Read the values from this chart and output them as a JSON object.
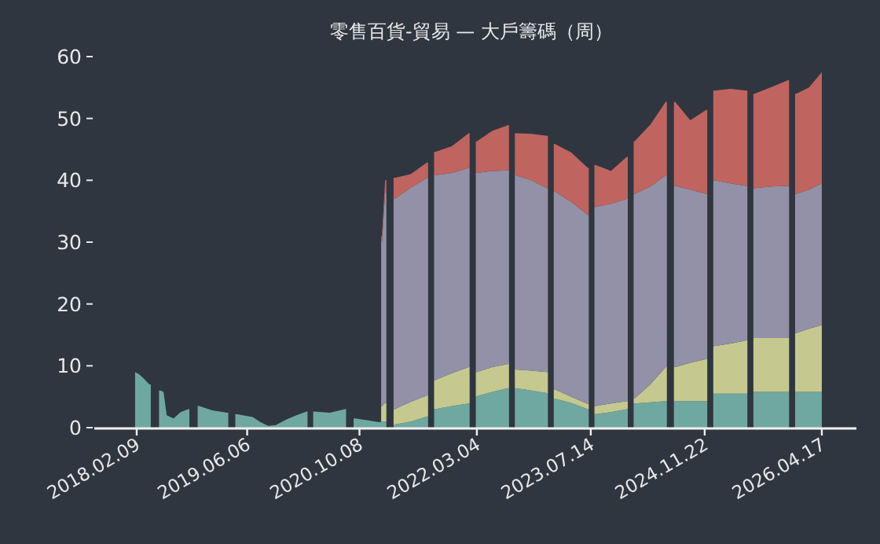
{
  "chart_data": {
    "type": "area",
    "title": "零售百貨-貿易 — 大戶籌碼（周）",
    "stacked": true,
    "x": [
      "2018-02-02",
      "2018-02-20",
      "2018-03-10",
      "2018-04-05",
      "2018-05-01",
      "2018-05-23",
      "2018-06-06",
      "2018-06-20",
      "2018-07-20",
      "2018-08-20",
      "2018-09-21",
      "2018-10-15",
      "2018-11-08",
      "2019-01-05",
      "2019-03-10",
      "2019-04-01",
      "2019-04-20",
      "2019-06-30",
      "2019-08-03",
      "2019-09-06",
      "2019-10-09",
      "2019-11-23",
      "2020-01-07",
      "2020-02-20",
      "2020-03-08",
      "2020-03-24",
      "2020-06-01",
      "2020-08-05",
      "2020-08-27",
      "2020-09-18",
      "2020-11-10",
      "2020-12-31",
      "2021-01-14",
      "2021-01-28",
      "2021-02-18",
      "2021-03-11",
      "2021-05-20",
      "2021-07-30",
      "2021-08-16",
      "2021-09-03",
      "2021-11-15",
      "2022-01-27",
      "2022-02-14",
      "2022-03-04",
      "2022-05-10",
      "2022-07-18",
      "2022-08-04",
      "2022-08-21",
      "2022-10-28",
      "2023-01-04",
      "2023-01-20",
      "2023-02-07",
      "2023-04-20",
      "2023-07-01",
      "2023-07-18",
      "2023-08-03",
      "2023-10-10",
      "2023-12-18",
      "2024-01-05",
      "2024-01-21",
      "2024-03-30",
      "2024-06-05",
      "2024-06-25",
      "2024-07-16",
      "2024-09-20",
      "2024-11-29",
      "2024-12-16",
      "2025-01-03",
      "2025-03-15",
      "2025-05-23",
      "2025-06-09",
      "2025-06-27",
      "2025-09-05",
      "2025-11-21",
      "2025-12-08",
      "2025-12-26",
      "2026-02-20",
      "2026-04-17"
    ],
    "series": [
      {
        "color": "#6fa8a0",
        "values": [
          9.0,
          8.6,
          8.0,
          7.0,
          null,
          6.0,
          5.8,
          2.0,
          1.5,
          2.5,
          3.0,
          null,
          3.5,
          2.8,
          2.4,
          null,
          2.2,
          1.7,
          0.9,
          0.3,
          0.4,
          1.3,
          2.0,
          2.6,
          null,
          2.6,
          2.4,
          3.0,
          null,
          1.5,
          1.2,
          0.9,
          1.0,
          1.0,
          null,
          0.5,
          1.0,
          1.8,
          null,
          3.0,
          3.5,
          3.9,
          null,
          5.1,
          5.8,
          6.4,
          null,
          6.4,
          6.0,
          5.6,
          null,
          4.7,
          4.0,
          3.0,
          null,
          2.2,
          2.5,
          3.0,
          null,
          3.9,
          4.1,
          4.3,
          null,
          4.3,
          4.3,
          4.3,
          null,
          5.5,
          5.5,
          5.5,
          null,
          5.8,
          5.8,
          5.8,
          null,
          5.8,
          5.8,
          5.8
        ]
      },
      {
        "color": "#c5c98f",
        "values": [
          null,
          null,
          null,
          null,
          null,
          null,
          null,
          null,
          null,
          null,
          null,
          null,
          null,
          null,
          null,
          null,
          null,
          null,
          null,
          null,
          null,
          null,
          null,
          null,
          null,
          null,
          null,
          null,
          null,
          null,
          null,
          null,
          2.5,
          3.0,
          null,
          2.5,
          3.2,
          3.4,
          null,
          4.7,
          5.3,
          5.9,
          null,
          3.9,
          4.0,
          3.9,
          null,
          3.0,
          3.2,
          3.4,
          null,
          1.5,
          1.0,
          0.8,
          null,
          1.3,
          1.4,
          1.3,
          null,
          0.8,
          2.9,
          5.5,
          null,
          5.5,
          6.2,
          6.8,
          null,
          7.7,
          8.1,
          8.6,
          null,
          8.7,
          8.7,
          8.7,
          null,
          9.5,
          10.2,
          10.8
        ]
      },
      {
        "color": "#9291a8",
        "values": [
          null,
          null,
          null,
          null,
          null,
          null,
          null,
          null,
          null,
          null,
          null,
          null,
          null,
          null,
          null,
          null,
          null,
          null,
          null,
          null,
          null,
          null,
          null,
          null,
          null,
          null,
          null,
          null,
          null,
          null,
          null,
          null,
          26.5,
          34.0,
          null,
          34.0,
          34.6,
          35.2,
          null,
          33.1,
          32.4,
          32.2,
          null,
          32.2,
          31.7,
          31.3,
          null,
          31.4,
          30.8,
          29.7,
          null,
          32.0,
          31.5,
          30.6,
          null,
          32.2,
          32.3,
          32.7,
          null,
          33.1,
          32.0,
          31.0,
          null,
          29.3,
          28.0,
          26.7,
          null,
          26.8,
          25.9,
          25.0,
          null,
          24.2,
          24.5,
          24.6,
          null,
          22.5,
          22.5,
          22.9
        ]
      },
      {
        "color": "#c0645f",
        "values": [
          null,
          null,
          null,
          null,
          null,
          null,
          null,
          null,
          null,
          null,
          null,
          null,
          null,
          null,
          null,
          null,
          null,
          null,
          null,
          null,
          null,
          null,
          null,
          null,
          null,
          null,
          null,
          null,
          null,
          null,
          null,
          null,
          1.0,
          2.0,
          null,
          3.4,
          2.2,
          2.5,
          null,
          3.8,
          4.3,
          5.6,
          null,
          5.1,
          6.5,
          7.3,
          null,
          6.8,
          7.5,
          8.5,
          null,
          7.7,
          8.0,
          7.6,
          null,
          6.8,
          5.3,
          6.8,
          null,
          8.5,
          10.0,
          11.9,
          null,
          13.6,
          11.2,
          13.6,
          null,
          14.5,
          15.3,
          15.4,
          null,
          15.3,
          16.0,
          17.1,
          null,
          16.2,
          16.5,
          18.0
        ]
      }
    ],
    "xlim": [
      "2017-08-08",
      "2026-09-15"
    ],
    "xticks": [
      {
        "value": "2018-02-09",
        "label": "2018.02.09"
      },
      {
        "value": "2019-06-06",
        "label": "2019.06.06"
      },
      {
        "value": "2020-10-08",
        "label": "2020.10.08"
      },
      {
        "value": "2022-03-04",
        "label": "2022.03.04"
      },
      {
        "value": "2023-07-14",
        "label": "2023.07.14"
      },
      {
        "value": "2024-11-22",
        "label": "2024.11.22"
      },
      {
        "value": "2026-04-17",
        "label": "2026.04.17"
      }
    ],
    "ylim": [
      0,
      60
    ],
    "yticks": [
      0,
      10,
      20,
      30,
      40,
      50,
      60
    ]
  }
}
